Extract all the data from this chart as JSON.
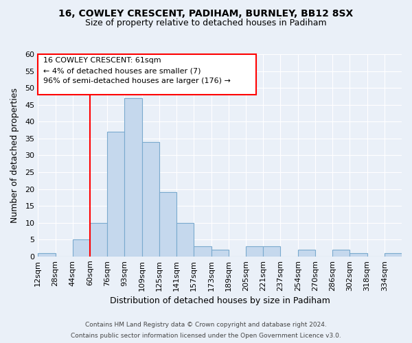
{
  "title_line1": "16, COWLEY CRESCENT, PADIHAM, BURNLEY, BB12 8SX",
  "title_line2": "Size of property relative to detached houses in Padiham",
  "xlabel": "Distribution of detached houses by size in Padiham",
  "ylabel": "Number of detached properties",
  "bin_labels": [
    "12sqm",
    "28sqm",
    "44sqm",
    "60sqm",
    "76sqm",
    "93sqm",
    "109sqm",
    "125sqm",
    "141sqm",
    "157sqm",
    "173sqm",
    "189sqm",
    "205sqm",
    "221sqm",
    "237sqm",
    "254sqm",
    "270sqm",
    "286sqm",
    "302sqm",
    "318sqm",
    "334sqm"
  ],
  "counts": [
    1,
    0,
    5,
    10,
    37,
    47,
    34,
    19,
    10,
    3,
    2,
    0,
    3,
    3,
    0,
    2,
    0,
    2,
    1,
    0,
    1
  ],
  "bar_color": "#c5d8ed",
  "bar_edge_color": "#7aaace",
  "vline_x": 3,
  "vline_color": "red",
  "annotation_box_text": "16 COWLEY CRESCENT: 61sqm\n← 4% of detached houses are smaller (7)\n96% of semi-detached houses are larger (176) →",
  "ylim": [
    0,
    60
  ],
  "yticks": [
    0,
    5,
    10,
    15,
    20,
    25,
    30,
    35,
    40,
    45,
    50,
    55,
    60
  ],
  "footer_line1": "Contains HM Land Registry data © Crown copyright and database right 2024.",
  "footer_line2": "Contains public sector information licensed under the Open Government Licence v3.0.",
  "background_color": "#eaf0f8",
  "plot_background_color": "#eaf0f8",
  "grid_color": "white"
}
